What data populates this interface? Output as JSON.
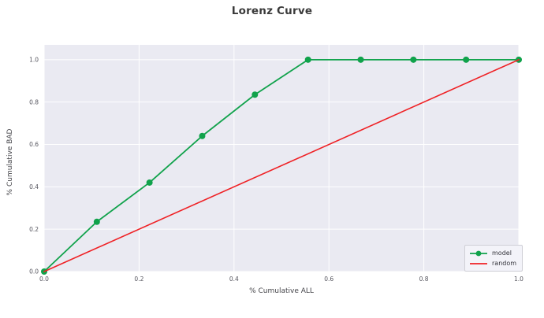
{
  "chart_data": {
    "type": "line",
    "title": "Lorenz Curve",
    "xlabel": "% Cumulative ALL",
    "ylabel": "% Cumulative BAD",
    "xlim": [
      0,
      1.0
    ],
    "ylim": [
      0,
      1.07
    ],
    "grid": true,
    "legend_position": "lower right",
    "x_ticks": [
      0,
      0.2,
      0.4,
      0.6,
      0.8,
      1.0
    ],
    "x_tick_labels": [
      "0.0",
      "0.2",
      "0.4",
      "0.6",
      "0.8",
      "1.0"
    ],
    "y_ticks": [
      0,
      0.2,
      0.4,
      0.6,
      0.8,
      1.0
    ],
    "y_tick_labels": [
      "0.0",
      "0.2",
      "0.4",
      "0.6",
      "0.8",
      "1.0"
    ],
    "series": [
      {
        "name": "model",
        "color": "#10a24b",
        "marker": "circle",
        "x": [
          0,
          0.111,
          0.222,
          0.333,
          0.444,
          0.556,
          0.667,
          0.778,
          0.889,
          1.0
        ],
        "y": [
          0,
          0.235,
          0.42,
          0.64,
          0.835,
          1.0,
          1.0,
          1.0,
          1.0,
          1.0
        ]
      },
      {
        "name": "random",
        "color": "#ef2125",
        "marker": "none",
        "x": [
          0,
          1.0
        ],
        "y": [
          0,
          1.0
        ]
      }
    ]
  },
  "style": {
    "plot_bg": "#eaeaf2",
    "grid_color": "#ffffff",
    "tick_label_color": "#55555e",
    "title_color": "#3a3a3a"
  }
}
